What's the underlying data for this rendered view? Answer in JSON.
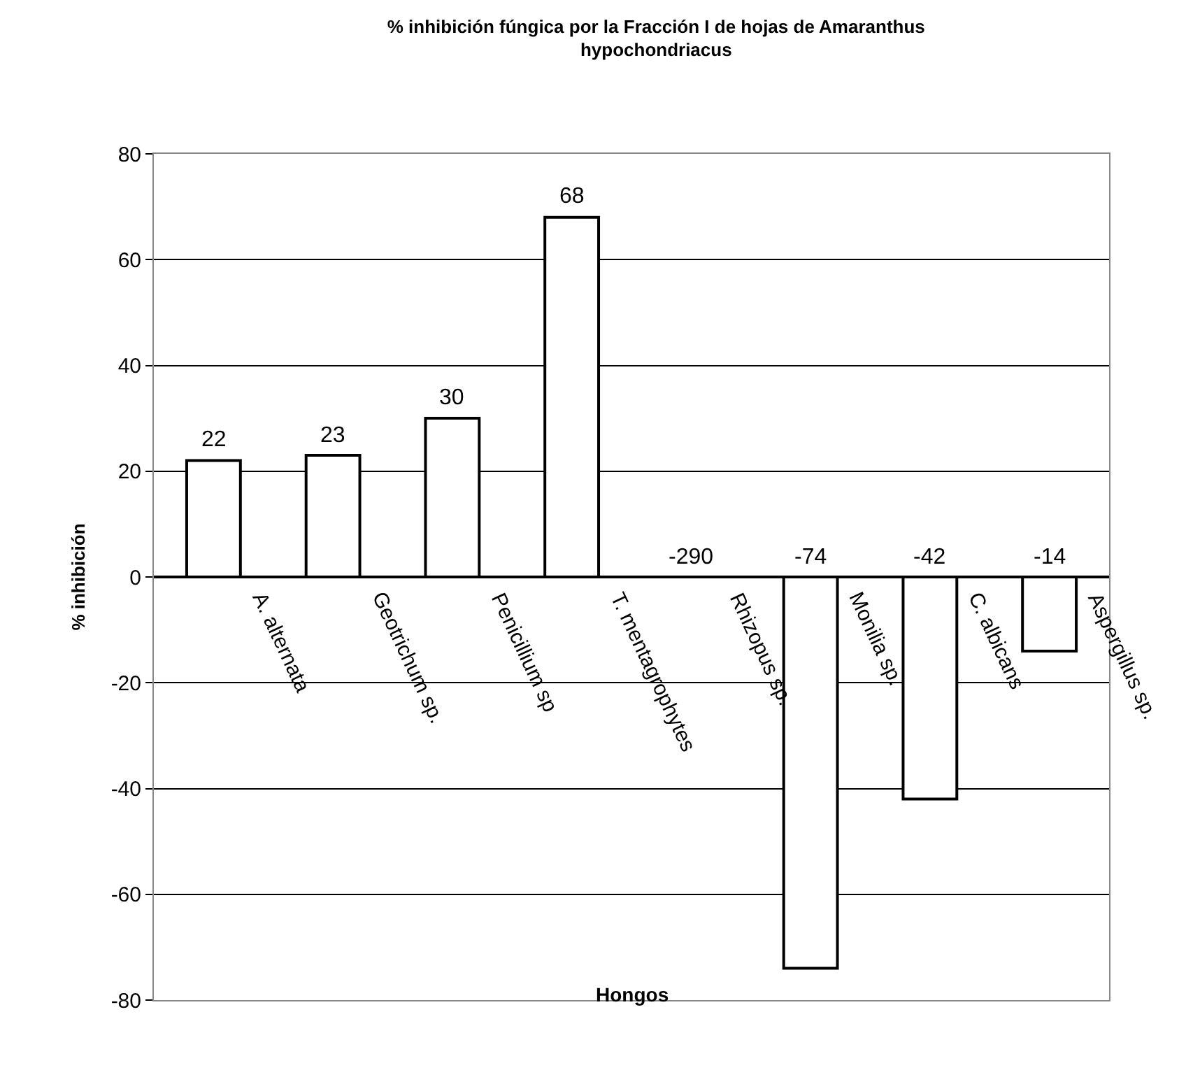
{
  "chart_data": {
    "type": "bar",
    "title": "% inhibición fúngica por la Fracción I de hojas de Amaranthus hypochondriacus",
    "xlabel": "Hongos",
    "ylabel": "% inhibición",
    "categories": [
      "A. alternata",
      "Geotrichum sp.",
      "Penicillium sp",
      "T. mentagrophytes",
      "Rhizopus sp.",
      "Monilia sp.",
      "C. albicans",
      "Aspergillus sp."
    ],
    "values": [
      22,
      23,
      30,
      68,
      null,
      -74,
      -42,
      -14
    ],
    "value_labels": [
      "22",
      "23",
      "30",
      "68",
      "-290",
      "-74",
      "-42",
      "-14"
    ],
    "color": "#ffffff",
    "ylim": [
      -80,
      80
    ],
    "yticks": [
      -80,
      -60,
      -40,
      -20,
      0,
      20,
      40,
      60,
      80
    ],
    "grid": "y",
    "legend": false
  }
}
